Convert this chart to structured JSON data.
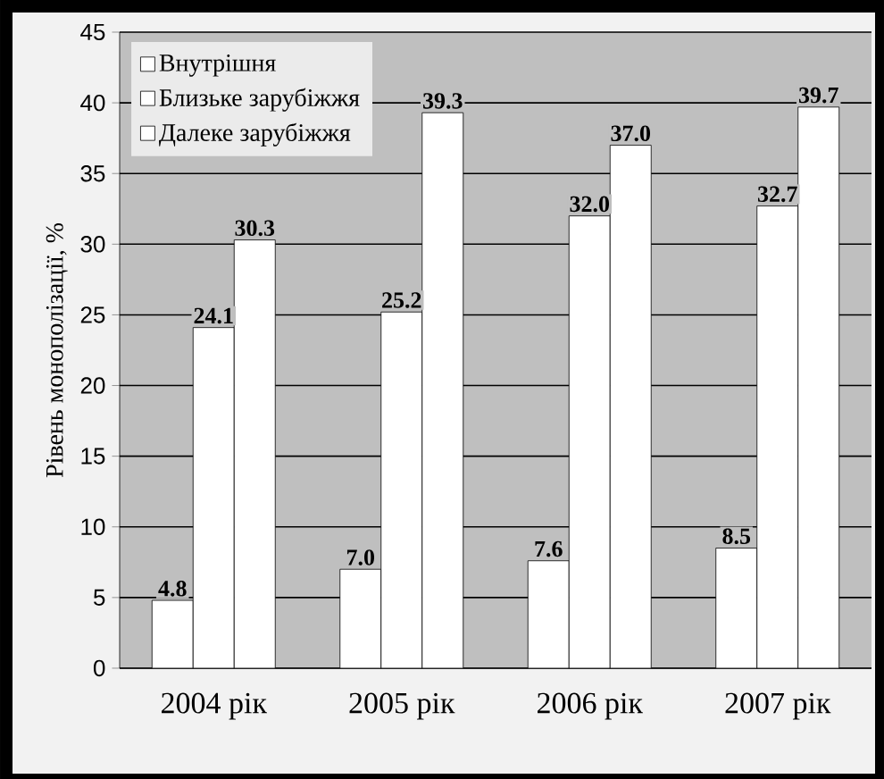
{
  "chart_data": {
    "type": "bar",
    "ylabel": "Рівень монополізації, %",
    "categories": [
      "2004 рік",
      "2005 рік",
      "2006 рік",
      "2007 рік"
    ],
    "series": [
      {
        "name": "Внутрішня",
        "color": "#ffffff",
        "values": [
          4.8,
          7.0,
          7.6,
          8.5
        ],
        "value_labels": [
          "4.8",
          "7.0",
          "7.6",
          "8.5"
        ]
      },
      {
        "name": "Близьке зарубіжжя",
        "color": "#ffffff",
        "values": [
          24.1,
          25.2,
          32.0,
          32.7
        ],
        "value_labels": [
          "24.1",
          "25.2",
          "32.0",
          "32.7"
        ]
      },
      {
        "name": "Далеке зарубіжжя",
        "color": "#ffffff",
        "values": [
          30.3,
          39.3,
          37.0,
          39.7
        ],
        "value_labels": [
          "30.3",
          "39.3",
          "37.0",
          "39.7"
        ]
      }
    ],
    "ylim": [
      0,
      45
    ],
    "yticks": [
      0,
      5,
      10,
      15,
      20,
      25,
      30,
      35,
      40,
      45
    ],
    "grid": "y",
    "legend": "top left"
  }
}
